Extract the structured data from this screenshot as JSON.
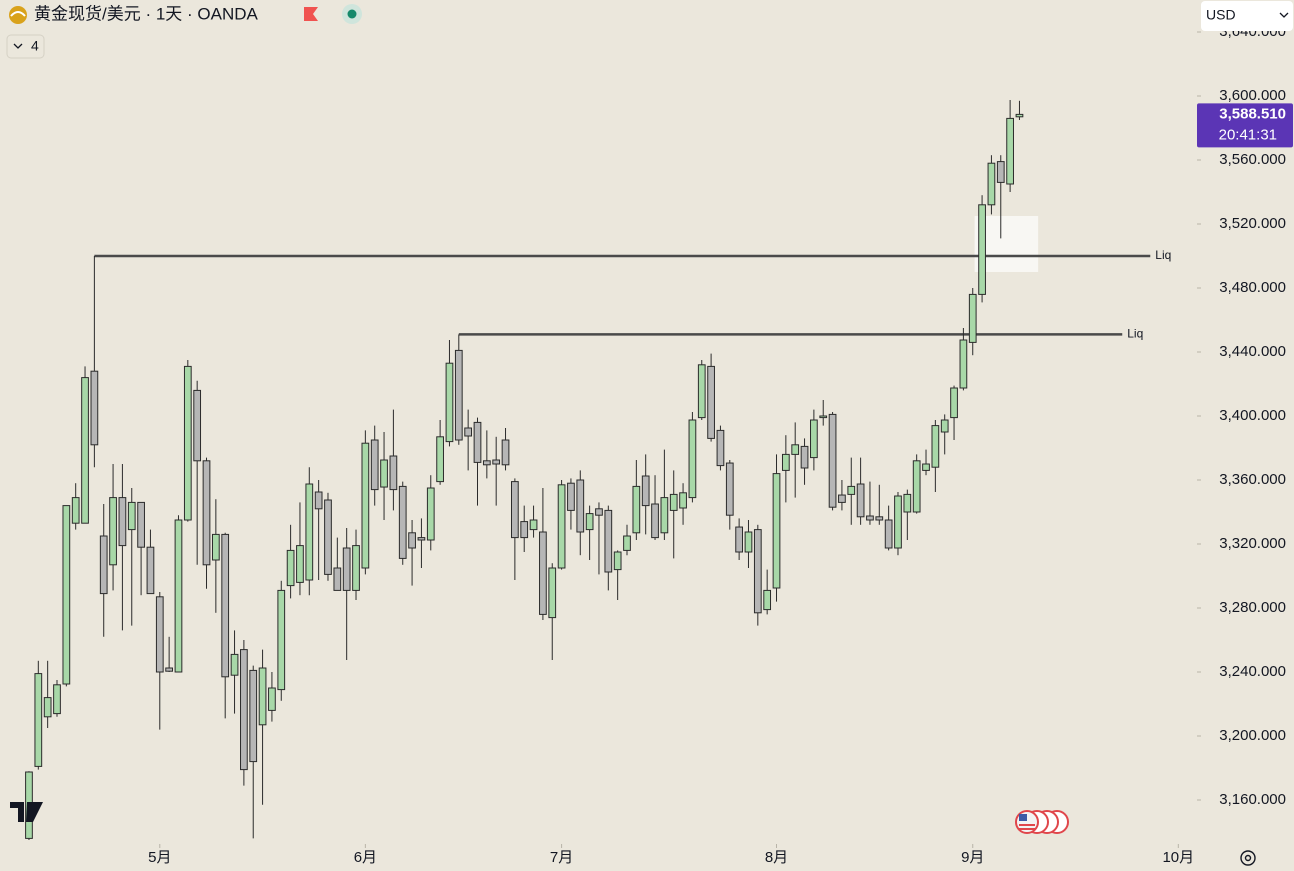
{
  "chart_data": {
    "type": "candlestick",
    "title": "黄金现货/美元 · 1天 · OANDA",
    "indicator_count": "4",
    "currency": "USD",
    "up_color": "#a8d8a8",
    "down_color": "#b6b6b6",
    "wick_color": "#2b2b2b",
    "line_color": "#4a4a4a",
    "background": "#ebe7dc",
    "ylim": [
      3135,
      3660
    ],
    "xlim": [
      -3.1,
      125
    ],
    "yticks": [
      {
        "value": 3160,
        "label": "3,160.000"
      },
      {
        "value": 3200,
        "label": "3,200.000"
      },
      {
        "value": 3240,
        "label": "3,240.000"
      },
      {
        "value": 3280,
        "label": "3,280.000"
      },
      {
        "value": 3320,
        "label": "3,320.000"
      },
      {
        "value": 3360,
        "label": "3,360.000"
      },
      {
        "value": 3400,
        "label": "3,400.000"
      },
      {
        "value": 3440,
        "label": "3,440.000"
      },
      {
        "value": 3480,
        "label": "3,480.000"
      },
      {
        "value": 3520,
        "label": "3,520.000"
      },
      {
        "value": 3560,
        "label": "3,560.000"
      },
      {
        "value": 3600,
        "label": "3,600.000"
      },
      {
        "value": 3640,
        "label": "3,640.000"
      }
    ],
    "xticks": [
      {
        "value": 14,
        "label": "5月"
      },
      {
        "value": 36,
        "label": "6月"
      },
      {
        "value": 57,
        "label": "7月"
      },
      {
        "value": 80,
        "label": "8月"
      },
      {
        "value": 101,
        "label": "9月"
      },
      {
        "value": 123,
        "label": "10月"
      }
    ],
    "last_price": {
      "value": 3588.51,
      "label": "3,588.510",
      "countdown": "20:41:31",
      "color": "#5b35b5"
    },
    "annotations": [
      {
        "label": "Liq",
        "value": 3500,
        "x": [
          7,
          120
        ]
      },
      {
        "label": "Liq",
        "value": 3451,
        "x": [
          46,
          117
        ]
      }
    ],
    "zone": {
      "ylim": [
        3490,
        3525
      ],
      "x": [
        101.2,
        108
      ]
    },
    "ohlc": [
      [
        3136,
        3178,
        3135,
        3177.5
      ],
      [
        3181,
        3247,
        3179,
        3239
      ],
      [
        3212,
        3247,
        3205,
        3224
      ],
      [
        3214,
        3235,
        3212,
        3232
      ],
      [
        3232.5,
        3344,
        3231,
        3344
      ],
      [
        3333,
        3358,
        3329,
        3349
      ],
      [
        3333,
        3431,
        3333,
        3424
      ],
      [
        3428,
        3500,
        3368,
        3382
      ],
      [
        3325,
        3345,
        3262,
        3289
      ],
      [
        3307,
        3370,
        3291,
        3349
      ],
      [
        3349,
        3370,
        3266,
        3319
      ],
      [
        3329,
        3355,
        3269,
        3346
      ],
      [
        3346,
        3346,
        3288,
        3318
      ],
      [
        3318,
        3329,
        3289,
        3289
      ],
      [
        3287,
        3290,
        3204,
        3240
      ],
      [
        3242.5,
        3262,
        3240,
        3240.5
      ],
      [
        3240,
        3338,
        3240,
        3335
      ],
      [
        3335,
        3435,
        3334,
        3431
      ],
      [
        3416,
        3422,
        3307,
        3372
      ],
      [
        3372,
        3374,
        3292,
        3307
      ],
      [
        3310,
        3348,
        3277,
        3326
      ],
      [
        3326,
        3327,
        3211,
        3237
      ],
      [
        3238,
        3266,
        3214,
        3251
      ],
      [
        3254,
        3260,
        3169,
        3179
      ],
      [
        3241,
        3244,
        3136,
        3184
      ],
      [
        3207,
        3254,
        3157,
        3242.5
      ],
      [
        3216,
        3240,
        3209,
        3230
      ],
      [
        3229,
        3297,
        3222,
        3291
      ],
      [
        3294,
        3332,
        3286,
        3316
      ],
      [
        3296,
        3346,
        3288,
        3319
      ],
      [
        3297.5,
        3368,
        3288,
        3357.5
      ],
      [
        3352.5,
        3360,
        3297.5,
        3342
      ],
      [
        3347.5,
        3352,
        3297,
        3301
      ],
      [
        3305,
        3324,
        3291,
        3291
      ],
      [
        3317.5,
        3330,
        3247.5,
        3291
      ],
      [
        3291,
        3329,
        3285,
        3319
      ],
      [
        3305,
        3391,
        3301,
        3383
      ],
      [
        3385,
        3394,
        3344,
        3354
      ],
      [
        3355.6,
        3390,
        3335,
        3372.5
      ],
      [
        3375,
        3404,
        3341,
        3354
      ],
      [
        3356,
        3359,
        3307,
        3311
      ],
      [
        3327,
        3335,
        3294,
        3317.5
      ],
      [
        3324,
        3336,
        3305,
        3322.5
      ],
      [
        3322.5,
        3363,
        3316,
        3355
      ],
      [
        3359,
        3397.5,
        3357,
        3387
      ],
      [
        3384,
        3447.5,
        3381,
        3433
      ],
      [
        3441,
        3451,
        3382,
        3385
      ],
      [
        3392.5,
        3404,
        3366,
        3387.5
      ],
      [
        3396,
        3399,
        3344,
        3371
      ],
      [
        3372,
        3391,
        3361,
        3369.5
      ],
      [
        3372.5,
        3387,
        3344,
        3370
      ],
      [
        3385,
        3392.5,
        3366,
        3369.5
      ],
      [
        3359,
        3361,
        3297.5,
        3324
      ],
      [
        3334,
        3344,
        3315,
        3324
      ],
      [
        3329,
        3344,
        3324,
        3335
      ],
      [
        3327.5,
        3355,
        3272.5,
        3276
      ],
      [
        3274,
        3308,
        3247.5,
        3305
      ],
      [
        3305,
        3360,
        3304,
        3357
      ],
      [
        3358,
        3361,
        3329,
        3341
      ],
      [
        3360,
        3366,
        3313,
        3327.5
      ],
      [
        3329,
        3344,
        3310,
        3339
      ],
      [
        3342,
        3346,
        3301,
        3338
      ],
      [
        3341,
        3344,
        3291,
        3302.5
      ],
      [
        3304,
        3316,
        3285,
        3315
      ],
      [
        3316,
        3332,
        3313,
        3325
      ],
      [
        3327,
        3372.5,
        3322.5,
        3356
      ],
      [
        3362.5,
        3376,
        3326,
        3344
      ],
      [
        3345,
        3363,
        3322.5,
        3324
      ],
      [
        3327,
        3379,
        3322.5,
        3349
      ],
      [
        3341,
        3366,
        3311,
        3351
      ],
      [
        3342.5,
        3358,
        3332,
        3352
      ],
      [
        3349,
        3402.5,
        3346,
        3397.5
      ],
      [
        3399,
        3435,
        3397.5,
        3432
      ],
      [
        3431,
        3439,
        3384,
        3386
      ],
      [
        3391,
        3394,
        3366,
        3369
      ],
      [
        3370.6,
        3372.5,
        3329,
        3338
      ],
      [
        3330.6,
        3336,
        3310,
        3315
      ],
      [
        3315,
        3335,
        3305,
        3327.5
      ],
      [
        3329,
        3332,
        3269,
        3277
      ],
      [
        3279,
        3304,
        3276,
        3291
      ],
      [
        3292.5,
        3376,
        3284,
        3364
      ],
      [
        3366,
        3388,
        3346,
        3376
      ],
      [
        3376,
        3396,
        3349,
        3382
      ],
      [
        3381,
        3386,
        3357,
        3367.5
      ],
      [
        3374,
        3404,
        3366,
        3397.5
      ],
      [
        3399,
        3410,
        3394,
        3400
      ],
      [
        3401,
        3402.5,
        3341,
        3343
      ],
      [
        3350.6,
        3360,
        3341,
        3346
      ],
      [
        3351,
        3374,
        3332,
        3356
      ],
      [
        3357.5,
        3374,
        3332,
        3337
      ],
      [
        3337.5,
        3359,
        3332,
        3335
      ],
      [
        3337,
        3357,
        3332,
        3335
      ],
      [
        3335,
        3344,
        3316,
        3317.5
      ],
      [
        3317.5,
        3352.5,
        3313,
        3350
      ],
      [
        3340,
        3354,
        3322.5,
        3351
      ],
      [
        3340,
        3376,
        3339,
        3372
      ],
      [
        3366,
        3379,
        3363,
        3370
      ],
      [
        3368,
        3397.5,
        3352.5,
        3394
      ],
      [
        3390,
        3401,
        3376,
        3397.5
      ],
      [
        3399,
        3419,
        3385,
        3417.5
      ],
      [
        3417.5,
        3455,
        3416,
        3447.5
      ],
      [
        3446,
        3480,
        3438,
        3476
      ],
      [
        3476,
        3538,
        3471,
        3532
      ],
      [
        3532,
        3563,
        3526,
        3558
      ],
      [
        3559,
        3563,
        3511,
        3546
      ],
      [
        3545,
        3597.5,
        3540,
        3586
      ],
      [
        3587,
        3597,
        3585,
        3588.51
      ]
    ]
  }
}
